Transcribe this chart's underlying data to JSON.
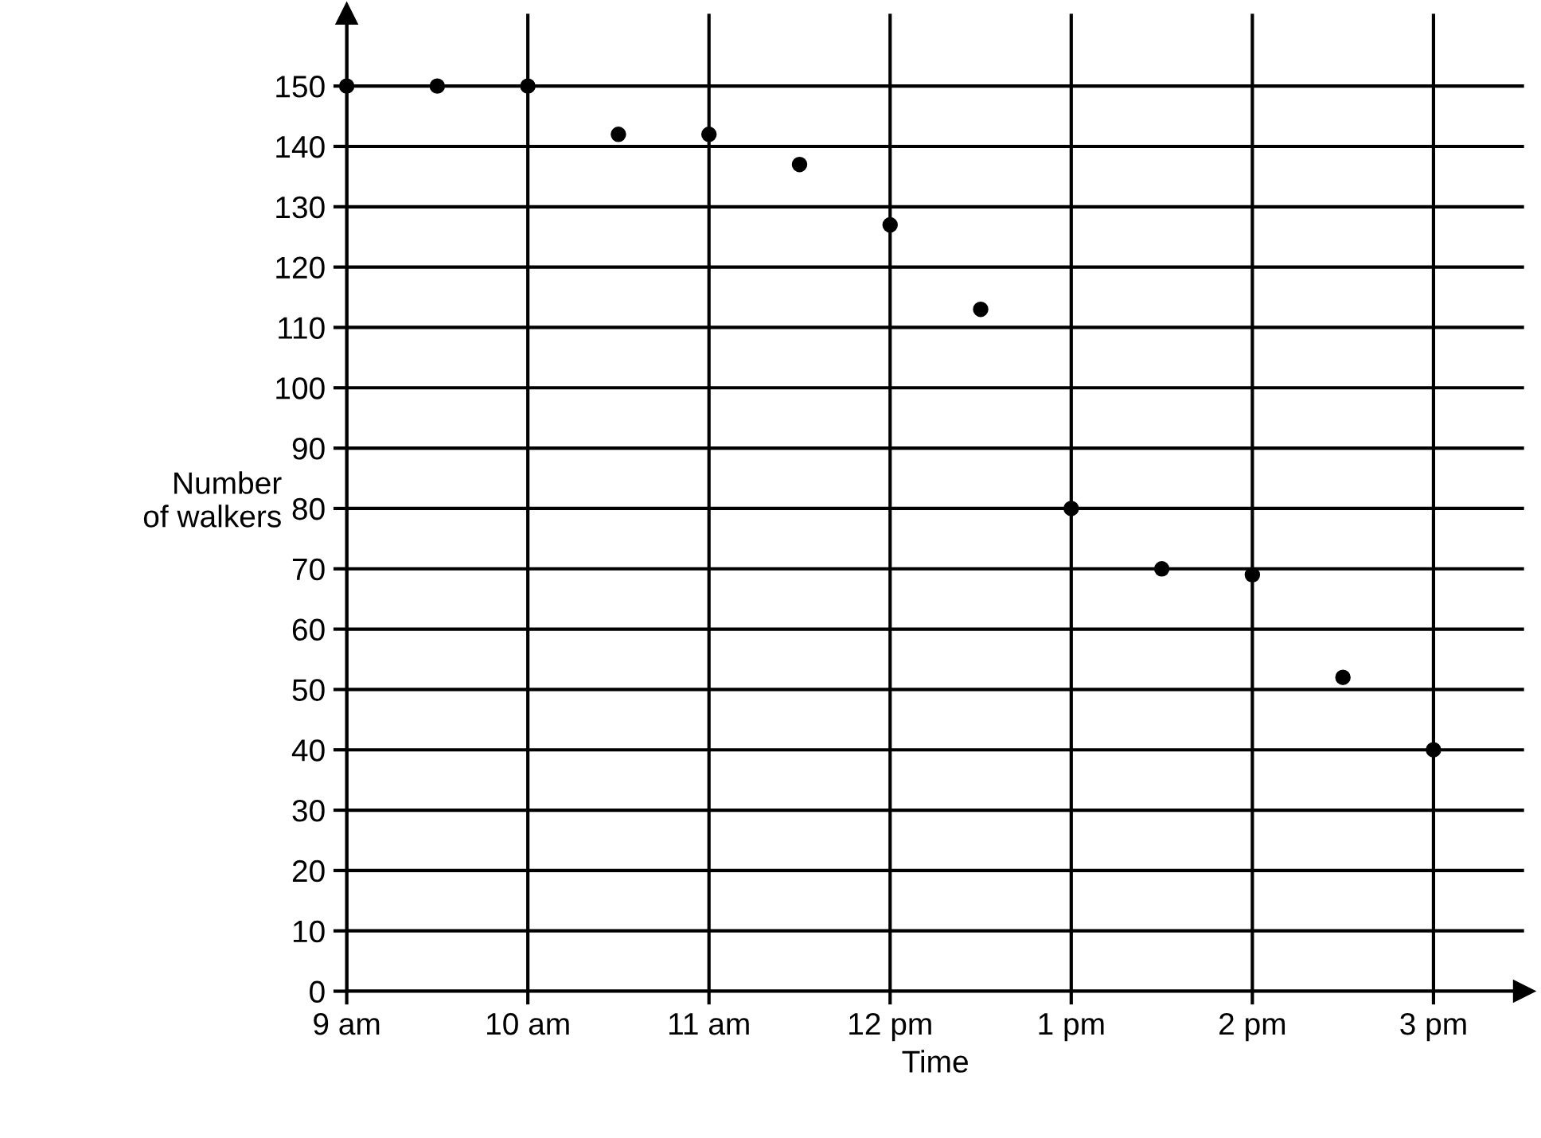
{
  "chart_data": {
    "type": "scatter",
    "xlabel": "Time",
    "ylabel": "Number\nof walkers",
    "categories": [
      "9 am",
      null,
      "10 am",
      null,
      "11 am",
      null,
      "12 pm",
      null,
      "1 pm",
      null,
      "2 pm",
      null,
      "3 pm"
    ],
    "series": [
      {
        "color": "#000000",
        "values": [
          150,
          150,
          150,
          142,
          142,
          137,
          127,
          113,
          80,
          70,
          69,
          52,
          40
        ]
      }
    ],
    "ylim": [
      0,
      162
    ],
    "yticks": [
      0,
      10,
      20,
      30,
      40,
      50,
      60,
      70,
      80,
      90,
      100,
      110,
      120,
      130,
      140,
      150
    ],
    "grid": true,
    "marker": "circle"
  }
}
